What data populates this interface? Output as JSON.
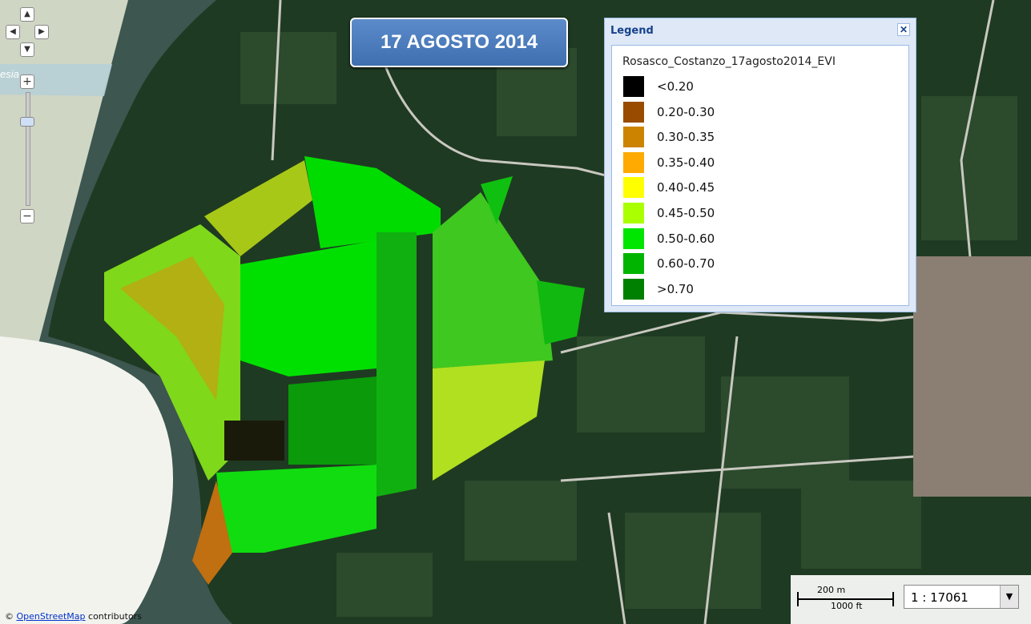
{
  "title": "17 AGOSTO 2014",
  "map_labels": [
    "esia"
  ],
  "legend": {
    "title": "Legend",
    "layer": "Rosasco_Costanzo_17agosto2014_EVI",
    "items": [
      {
        "label": "<0.20",
        "color": "#000000"
      },
      {
        "label": "0.20-0.30",
        "color": "#994c00"
      },
      {
        "label": "0.30-0.35",
        "color": "#cc8400"
      },
      {
        "label": "0.35-0.40",
        "color": "#ffaa00"
      },
      {
        "label": "0.40-0.45",
        "color": "#ffff00"
      },
      {
        "label": "0.45-0.50",
        "color": "#aaff00"
      },
      {
        "label": "0.50-0.60",
        "color": "#00e600"
      },
      {
        "label": "0.60-0.70",
        "color": "#00b400"
      },
      {
        "label": ">0.70",
        "color": "#008000"
      }
    ]
  },
  "scale": {
    "metric": "200 m",
    "imperial": "1000 ft",
    "ratio": "1 : 17061"
  },
  "attribution": {
    "symbol": "©",
    "link": "OpenStreetMap",
    "text": "contributors"
  }
}
